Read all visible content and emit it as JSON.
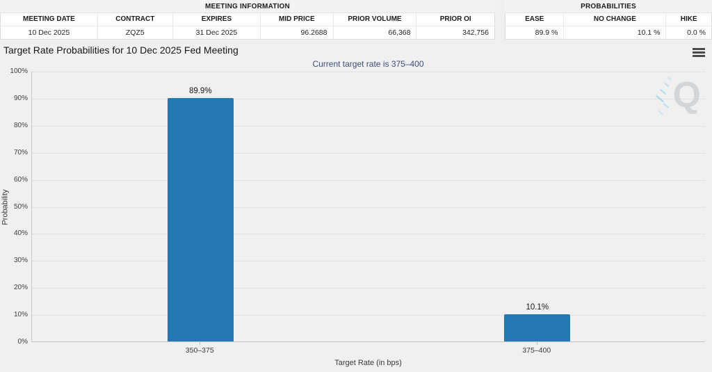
{
  "meeting_information": {
    "section_title": "MEETING INFORMATION",
    "columns": [
      "MEETING DATE",
      "CONTRACT",
      "EXPIRES",
      "MID PRICE",
      "PRIOR VOLUME",
      "PRIOR OI"
    ],
    "values": [
      "10 Dec 2025",
      "ZQZ5",
      "31 Dec 2025",
      "96.2688",
      "66,368",
      "342,756"
    ]
  },
  "probabilities": {
    "section_title": "PROBABILITIES",
    "columns": [
      "EASE",
      "NO CHANGE",
      "HIKE"
    ],
    "values": [
      "89.9 %",
      "10.1 %",
      "0.0 %"
    ]
  },
  "chart": {
    "title": "Target Rate Probabilities for 10 Dec 2025 Fed Meeting",
    "subtitle": "Current target rate is 375–400",
    "watermark_letter": "Q",
    "icons": {
      "menu": "hamburger-menu-icon",
      "watermark": "q-logo-watermark"
    }
  },
  "chart_data": {
    "type": "bar",
    "categories": [
      "350–375",
      "375–400"
    ],
    "values": [
      89.9,
      10.1
    ],
    "bar_labels": [
      "89.9%",
      "10.1%"
    ],
    "title": "Target Rate Probabilities for 10 Dec 2025 Fed Meeting",
    "subtitle": "Current target rate is 375–400",
    "xlabel": "Target Rate (in bps)",
    "ylabel": "Probability",
    "ylim": [
      0,
      100
    ],
    "ytick_labels": [
      "0%",
      "10%",
      "20%",
      "30%",
      "40%",
      "50%",
      "60%",
      "70%",
      "80%",
      "90%",
      "100%"
    ],
    "grid": "dotted-horizontal",
    "legend": "none",
    "bar_color": "#2577b3"
  },
  "colors": {
    "bar": "#2577b3",
    "subtitle_text": "#3d4c7c",
    "watermark_q": "#d3d6d8",
    "watermark_spark": "#8fd6ea"
  }
}
